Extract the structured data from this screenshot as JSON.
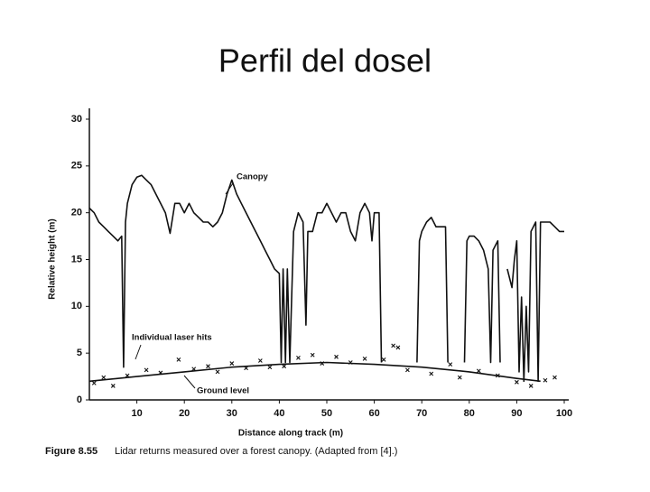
{
  "chart_data": {
    "type": "line",
    "title": "Perfil del dosel",
    "x_label": "Distance along track (m)",
    "y_label": "Relative height (m)",
    "caption": {
      "figure": "Figure 8.55",
      "text": "Lidar returns measured over a forest canopy. (Adapted from [4].)"
    },
    "annotations": [
      "Canopy",
      "Individual laser hits",
      "Ground level"
    ],
    "xlim": [
      0,
      100
    ],
    "ylim": [
      0,
      30
    ],
    "xticks": [
      10,
      20,
      30,
      40,
      50,
      60,
      70,
      80,
      90,
      100
    ],
    "yticks": [
      0,
      5,
      10,
      15,
      20,
      25,
      30
    ],
    "color": "#111111",
    "series": [
      {
        "name": "Canopy",
        "color": "#111111",
        "x": [
          0,
          1,
          2,
          3,
          4,
          5,
          6,
          6.8,
          7.2,
          7.6,
          8,
          9,
          10,
          11,
          12,
          13,
          14,
          15,
          16,
          17,
          18,
          19,
          20,
          21,
          22,
          23,
          24,
          25,
          26,
          27,
          28,
          29,
          30,
          31,
          32,
          33,
          34,
          35,
          36,
          37,
          38,
          39,
          40,
          40.4,
          40.8,
          41.3,
          41.7,
          42.2,
          43,
          44,
          45,
          45.6,
          46,
          47,
          48,
          49,
          50,
          51,
          52,
          53,
          54,
          55,
          56,
          57,
          58,
          59,
          59.5,
          60,
          61,
          61.5,
          62,
          69,
          69.5,
          70,
          71,
          72,
          73,
          74,
          75,
          75.5,
          76,
          79,
          79.5,
          80,
          81,
          82,
          83,
          84,
          84.5,
          85,
          86,
          86.5,
          87,
          88,
          89,
          89.5,
          90,
          90.5,
          91,
          91.5,
          92,
          92.5,
          93,
          94,
          94.5,
          95,
          96,
          97,
          98,
          99,
          100
        ],
        "values": [
          20.5,
          20,
          19,
          18.5,
          18,
          17.5,
          17,
          17.5,
          3.5,
          19,
          21,
          23,
          23.8,
          24,
          23.5,
          23,
          22,
          21,
          20,
          17.8,
          21,
          21,
          20,
          21,
          20,
          19.5,
          19,
          19,
          18.5,
          19,
          20,
          22,
          23.5,
          22,
          21,
          20,
          19,
          18,
          17,
          16,
          15,
          14,
          13.5,
          4,
          14,
          4,
          14,
          4,
          18,
          20,
          19,
          8,
          18,
          18,
          20,
          20,
          21,
          20,
          19,
          20,
          20,
          18,
          17,
          20,
          21,
          20,
          17,
          20,
          20,
          4,
          null,
          4,
          17,
          18,
          19,
          19.5,
          18.5,
          18.5,
          18.5,
          4,
          null,
          4,
          17,
          17.5,
          17.5,
          17,
          16,
          14,
          4,
          16,
          17,
          4,
          null,
          14,
          12,
          15,
          17,
          3,
          11,
          2,
          10,
          3,
          18,
          19,
          2,
          19,
          19,
          19,
          18.5,
          18,
          18
        ]
      },
      {
        "name": "Ground level",
        "color": "#111111",
        "x": [
          0,
          10,
          20,
          30,
          40,
          50,
          60,
          70,
          80,
          90,
          95
        ],
        "values": [
          2,
          2.5,
          3,
          3.5,
          3.8,
          4,
          3.8,
          3.5,
          3,
          2.3,
          2
        ]
      },
      {
        "name": "Individual laser hits",
        "color": "#111111",
        "type": "scatter",
        "x": [
          1,
          3,
          5,
          8,
          12,
          15,
          18.8,
          22,
          25,
          27,
          30,
          33,
          36,
          38,
          41,
          44,
          47,
          49,
          52,
          55,
          58,
          62,
          64,
          65,
          67,
          72,
          76,
          78,
          82,
          86,
          90,
          93,
          96,
          98
        ],
        "values": [
          1.8,
          2.4,
          1.5,
          2.6,
          3.2,
          2.9,
          4.3,
          3.3,
          3.6,
          3.0,
          3.9,
          3.4,
          4.2,
          3.5,
          3.6,
          4.5,
          4.8,
          3.9,
          4.6,
          4.0,
          4.4,
          4.3,
          5.8,
          5.6,
          3.2,
          2.8,
          3.8,
          2.4,
          3.1,
          2.6,
          1.9,
          1.5,
          2.1,
          2.4
        ]
      }
    ]
  }
}
